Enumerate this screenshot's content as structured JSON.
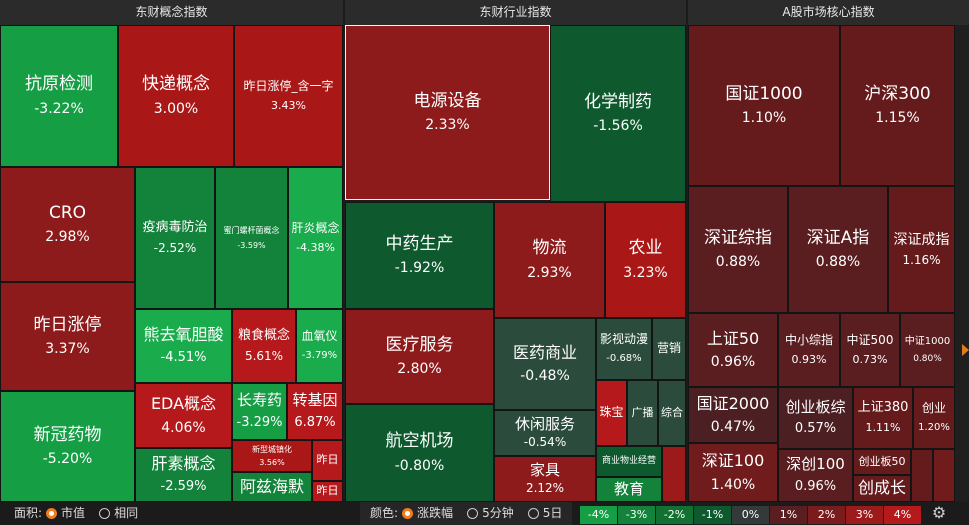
{
  "headers": [
    {
      "title": "东财概念指数"
    },
    {
      "title": "东财行业指数"
    },
    {
      "title": "A股市场核心指数"
    }
  ],
  "tiles": {
    "kangyuan": {
      "name": "抗原检测",
      "value": "-3.22%"
    },
    "kuaidi": {
      "name": "快递概念",
      "value": "3.00%"
    },
    "zuori_han": {
      "name": "昨日涨停_含一字",
      "value": "3.43%"
    },
    "cro": {
      "name": "CRO",
      "value": "2.98%"
    },
    "yibing": {
      "name": "疫病毒防治",
      "value": "-2.52%"
    },
    "jiguangmen": {
      "name": "蜜门螺杆菌概念",
      "value": "-3.59%"
    },
    "ganyan": {
      "name": "肝炎概念",
      "value": "-4.38%"
    },
    "zuori": {
      "name": "昨日涨停",
      "value": "3.37%"
    },
    "xiongqu": {
      "name": "熊去氧胆酸",
      "value": "-4.51%"
    },
    "liangshi": {
      "name": "粮食概念",
      "value": "5.61%"
    },
    "xueyang": {
      "name": "血氧仪",
      "value": "-3.79%"
    },
    "eda": {
      "name": "EDA概念",
      "value": "4.06%"
    },
    "changshou": {
      "name": "长寿药",
      "value": "-3.29%"
    },
    "zhuanjiyin": {
      "name": "转基因",
      "value": "6.87%"
    },
    "xinguan": {
      "name": "新冠药物",
      "value": "-5.20%"
    },
    "gansu": {
      "name": "肝素概念",
      "value": "-2.59%"
    },
    "xinxing": {
      "name": "新型城镇化",
      "value": "3.56%"
    },
    "zuori_s1": {
      "name": "昨日",
      "value": ""
    },
    "adz": {
      "name": "阿兹海默",
      "value": ""
    },
    "zuori_s2": {
      "name": "昨日",
      "value": ""
    },
    "dianyuan": {
      "name": "电源设备",
      "value": "2.33%"
    },
    "huaxue": {
      "name": "化学制药",
      "value": "-1.56%"
    },
    "zhongyao": {
      "name": "中药生产",
      "value": "-1.92%"
    },
    "wuliu": {
      "name": "物流",
      "value": "2.93%"
    },
    "nongye": {
      "name": "农业",
      "value": "3.23%"
    },
    "yiliao": {
      "name": "医疗服务",
      "value": "2.80%"
    },
    "yiyao": {
      "name": "医药商业",
      "value": "-0.48%"
    },
    "yingshi": {
      "name": "影视动漫",
      "value": "-0.68%"
    },
    "yingxiao": {
      "name": "营销",
      "value": ""
    },
    "hangkong": {
      "name": "航空机场",
      "value": "-0.80%"
    },
    "xiuxian": {
      "name": "休闲服务",
      "value": "-0.54%"
    },
    "zhubao": {
      "name": "珠宝",
      "value": ""
    },
    "guangbo": {
      "name": "广播",
      "value": ""
    },
    "zonghe": {
      "name": "综合",
      "value": ""
    },
    "jiaju": {
      "name": "家具",
      "value": "2.12%"
    },
    "shangye": {
      "name": "商业物业经营",
      "value": ""
    },
    "jiaoyu": {
      "name": "教育",
      "value": ""
    },
    "gz1000": {
      "name": "国证1000",
      "value": "1.10%"
    },
    "hs300": {
      "name": "沪深300",
      "value": "1.15%"
    },
    "szzz": {
      "name": "深证综指",
      "value": "0.88%"
    },
    "sza": {
      "name": "深证A指",
      "value": "0.88%"
    },
    "szcz": {
      "name": "深证成指",
      "value": "1.16%"
    },
    "sz50": {
      "name": "上证50",
      "value": "0.96%"
    },
    "zxzz": {
      "name": "中小综指",
      "value": "0.93%"
    },
    "zz500": {
      "name": "中证500",
      "value": "0.73%"
    },
    "zz1000": {
      "name": "中证1000",
      "value": "0.80%"
    },
    "gz2000": {
      "name": "国证2000",
      "value": "0.47%"
    },
    "cybz": {
      "name": "创业板综",
      "value": "0.57%"
    },
    "sz380": {
      "name": "上证380",
      "value": "1.11%"
    },
    "cy": {
      "name": "创业",
      "value": "1.20%"
    },
    "sz100": {
      "name": "深证100",
      "value": "1.40%"
    },
    "ss100": {
      "name": "深创100",
      "value": "0.96%"
    },
    "cyb50": {
      "name": "创业板50",
      "value": ""
    },
    "ccz": {
      "name": "创成长",
      "value": ""
    }
  },
  "footer": {
    "area_label": "面积:",
    "area_opt1": "市值",
    "area_opt2": "相同",
    "color_label": "颜色:",
    "color_opt1": "涨跌幅",
    "color_opt2": "5分钟",
    "color_opt3": "5日",
    "legend": [
      "-4%",
      "-3%",
      "-2%",
      "-1%",
      "0%",
      "1%",
      "2%",
      "3%",
      "4%"
    ],
    "legend_colors": [
      "#169e45",
      "#13823a",
      "#117032",
      "#0e5a2e",
      "#333a3a",
      "#5a1d20",
      "#7a1c1d",
      "#9c1a1a",
      "#b5191b"
    ]
  }
}
